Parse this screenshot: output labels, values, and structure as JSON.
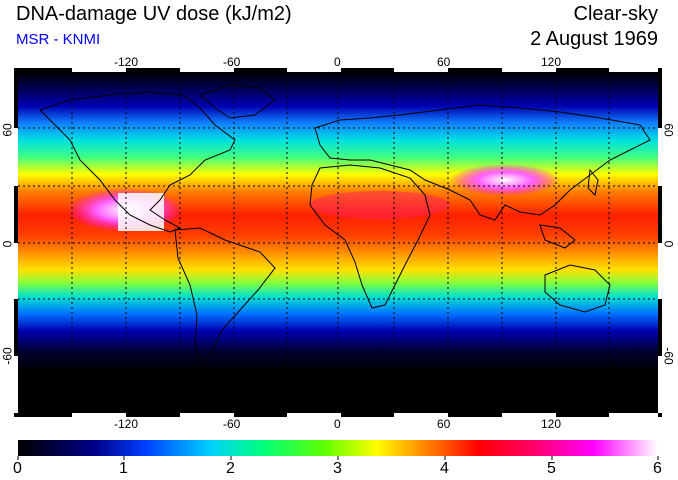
{
  "header": {
    "title": "DNA-damage UV dose (kJ/m2)",
    "subtitle": "MSR - KNMI",
    "sky_condition": "Clear-sky",
    "date": "2 August 1969"
  },
  "map": {
    "projection": "equirectangular",
    "lon_range": [
      -180,
      180
    ],
    "lat_range": [
      -90,
      90
    ],
    "grid": true,
    "coastlines": true,
    "lon_ticks": [
      "-120",
      "-60",
      "0",
      "60",
      "120"
    ],
    "lat_ticks_left": [
      "60",
      "0",
      "-60"
    ],
    "lat_ticks_right": [
      "60",
      "0",
      "-60"
    ]
  },
  "colorbar": {
    "min": 0,
    "max": 6,
    "labels": [
      "0",
      "1",
      "2",
      "3",
      "4",
      "5",
      "6"
    ],
    "colors": [
      "#000000",
      "#000080",
      "#0000ff",
      "#00ffff",
      "#00ff00",
      "#ffff00",
      "#ff8000",
      "#ff0000",
      "#ff00ff",
      "#ffffff"
    ]
  },
  "legend_colors": {
    "title_color": "#000000",
    "subtitle_color": "#0000ff"
  }
}
